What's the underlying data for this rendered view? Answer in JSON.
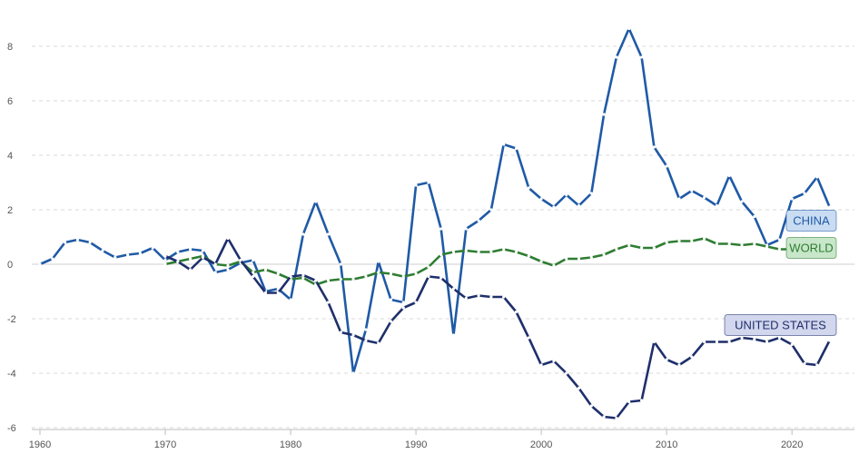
{
  "chart_data": {
    "type": "line",
    "title": "",
    "xlabel": "",
    "ylabel": "",
    "xlim": [
      1960,
      2024
    ],
    "ylim": [
      -6,
      9
    ],
    "x_ticks": [
      1960,
      1970,
      1980,
      1990,
      2000,
      2010,
      2020
    ],
    "y_ticks": [
      -6,
      -4,
      -2,
      0,
      2,
      4,
      6,
      8
    ],
    "grid": true,
    "series": [
      {
        "name": "CHINA",
        "color": "#1f5aa6",
        "label_bg": "#c9dcf2",
        "points": [
          [
            1960,
            0.0
          ],
          [
            1961,
            0.2
          ],
          [
            1962,
            0.8
          ],
          [
            1963,
            0.9
          ],
          [
            1964,
            0.8
          ],
          [
            1965,
            0.5
          ],
          [
            1966,
            0.25
          ],
          [
            1967,
            0.35
          ],
          [
            1968,
            0.4
          ],
          [
            1969,
            0.6
          ],
          [
            1970,
            0.15
          ],
          [
            1971,
            0.45
          ],
          [
            1972,
            0.55
          ],
          [
            1973,
            0.5
          ],
          [
            1974,
            -0.3
          ],
          [
            1975,
            -0.2
          ],
          [
            1976,
            0.05
          ],
          [
            1977,
            0.15
          ],
          [
            1978,
            -1.0
          ],
          [
            1979,
            -0.9
          ],
          [
            1980,
            -1.3
          ],
          [
            1981,
            1.1
          ],
          [
            1982,
            2.3
          ],
          [
            1983,
            1.1
          ],
          [
            1984,
            0.0
          ],
          [
            1985,
            -4.0
          ],
          [
            1986,
            -2.4
          ],
          [
            1987,
            0.1
          ],
          [
            1988,
            -1.3
          ],
          [
            1989,
            -1.4
          ],
          [
            1990,
            2.9
          ],
          [
            1991,
            3.0
          ],
          [
            1992,
            1.3
          ],
          [
            1993,
            -2.6
          ],
          [
            1994,
            1.3
          ],
          [
            1995,
            1.6
          ],
          [
            1996,
            2.0
          ],
          [
            1997,
            4.4
          ],
          [
            1998,
            4.25
          ],
          [
            1999,
            2.8
          ],
          [
            2000,
            2.4
          ],
          [
            2001,
            2.1
          ],
          [
            2002,
            2.55
          ],
          [
            2003,
            2.15
          ],
          [
            2004,
            2.6
          ],
          [
            2005,
            5.5
          ],
          [
            2006,
            7.6
          ],
          [
            2007,
            8.65
          ],
          [
            2008,
            7.6
          ],
          [
            2009,
            4.3
          ],
          [
            2010,
            3.6
          ],
          [
            2011,
            2.4
          ],
          [
            2012,
            2.7
          ],
          [
            2013,
            2.45
          ],
          [
            2014,
            2.15
          ],
          [
            2015,
            3.25
          ],
          [
            2016,
            2.3
          ],
          [
            2017,
            1.75
          ],
          [
            2018,
            0.7
          ],
          [
            2019,
            0.9
          ],
          [
            2020,
            2.4
          ],
          [
            2021,
            2.6
          ],
          [
            2022,
            3.2
          ],
          [
            2023,
            2.1
          ]
        ]
      },
      {
        "name": "WORLD",
        "color": "#2e7d32",
        "label_bg": "#c8e6c9",
        "points": [
          [
            1970,
            0.0
          ],
          [
            1971,
            0.1
          ],
          [
            1972,
            0.2
          ],
          [
            1973,
            0.3
          ],
          [
            1974,
            0.0
          ],
          [
            1975,
            -0.05
          ],
          [
            1976,
            0.1
          ],
          [
            1977,
            -0.3
          ],
          [
            1978,
            -0.2
          ],
          [
            1979,
            -0.35
          ],
          [
            1980,
            -0.55
          ],
          [
            1981,
            -0.5
          ],
          [
            1982,
            -0.75
          ],
          [
            1983,
            -0.6
          ],
          [
            1984,
            -0.55
          ],
          [
            1985,
            -0.55
          ],
          [
            1986,
            -0.45
          ],
          [
            1987,
            -0.3
          ],
          [
            1988,
            -0.35
          ],
          [
            1989,
            -0.45
          ],
          [
            1990,
            -0.35
          ],
          [
            1991,
            -0.1
          ],
          [
            1992,
            0.35
          ],
          [
            1993,
            0.45
          ],
          [
            1994,
            0.5
          ],
          [
            1995,
            0.45
          ],
          [
            1996,
            0.45
          ],
          [
            1997,
            0.55
          ],
          [
            1998,
            0.45
          ],
          [
            1999,
            0.3
          ],
          [
            2000,
            0.1
          ],
          [
            2001,
            -0.05
          ],
          [
            2002,
            0.2
          ],
          [
            2003,
            0.2
          ],
          [
            2004,
            0.25
          ],
          [
            2005,
            0.35
          ],
          [
            2006,
            0.55
          ],
          [
            2007,
            0.7
          ],
          [
            2008,
            0.6
          ],
          [
            2009,
            0.6
          ],
          [
            2010,
            0.8
          ],
          [
            2011,
            0.85
          ],
          [
            2012,
            0.85
          ],
          [
            2013,
            0.95
          ],
          [
            2014,
            0.75
          ],
          [
            2015,
            0.75
          ],
          [
            2016,
            0.7
          ],
          [
            2017,
            0.75
          ],
          [
            2018,
            0.65
          ],
          [
            2019,
            0.55
          ],
          [
            2020,
            0.55
          ],
          [
            2021,
            1.0
          ]
        ]
      },
      {
        "name": "UNITED STATES",
        "color": "#1e2f6b",
        "label_bg": "#d3d7ee",
        "points": [
          [
            1970,
            0.3
          ],
          [
            1971,
            0.1
          ],
          [
            1972,
            -0.2
          ],
          [
            1973,
            0.25
          ],
          [
            1974,
            0.0
          ],
          [
            1975,
            0.95
          ],
          [
            1976,
            0.15
          ],
          [
            1977,
            -0.45
          ],
          [
            1978,
            -1.05
          ],
          [
            1979,
            -1.05
          ],
          [
            1980,
            -0.45
          ],
          [
            1981,
            -0.4
          ],
          [
            1982,
            -0.6
          ],
          [
            1983,
            -1.4
          ],
          [
            1984,
            -2.5
          ],
          [
            1985,
            -2.6
          ],
          [
            1986,
            -2.8
          ],
          [
            1987,
            -2.9
          ],
          [
            1988,
            -2.1
          ],
          [
            1989,
            -1.6
          ],
          [
            1990,
            -1.4
          ],
          [
            1991,
            -0.45
          ],
          [
            1992,
            -0.5
          ],
          [
            1993,
            -0.9
          ],
          [
            1994,
            -1.25
          ],
          [
            1995,
            -1.15
          ],
          [
            1996,
            -1.2
          ],
          [
            1997,
            -1.2
          ],
          [
            1998,
            -1.75
          ],
          [
            1999,
            -2.7
          ],
          [
            2000,
            -3.7
          ],
          [
            2001,
            -3.55
          ],
          [
            2002,
            -4.0
          ],
          [
            2003,
            -4.55
          ],
          [
            2004,
            -5.2
          ],
          [
            2005,
            -5.6
          ],
          [
            2006,
            -5.65
          ],
          [
            2007,
            -5.05
          ],
          [
            2008,
            -5.0
          ],
          [
            2009,
            -2.85
          ],
          [
            2010,
            -3.5
          ],
          [
            2011,
            -3.7
          ],
          [
            2012,
            -3.4
          ],
          [
            2013,
            -2.85
          ],
          [
            2014,
            -2.85
          ],
          [
            2015,
            -2.85
          ],
          [
            2016,
            -2.7
          ],
          [
            2017,
            -2.75
          ],
          [
            2018,
            -2.85
          ],
          [
            2019,
            -2.7
          ],
          [
            2020,
            -2.95
          ],
          [
            2021,
            -3.65
          ],
          [
            2022,
            -3.7
          ],
          [
            2023,
            -2.8
          ]
        ]
      }
    ],
    "labels": [
      {
        "series": "CHINA",
        "text": "CHINA"
      },
      {
        "series": "WORLD",
        "text": "WORLD"
      },
      {
        "series": "UNITED STATES",
        "text": "UNITED STATES"
      }
    ]
  }
}
